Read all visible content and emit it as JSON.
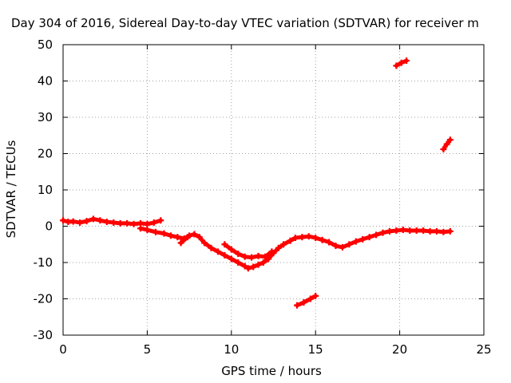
{
  "chart_data": {
    "type": "scatter",
    "title": "Day 304 of 2016, Sidereal Day-to-day VTEC variation (SDTVAR) for receiver m",
    "xlabel": "GPS time / hours",
    "ylabel": "SDTVAR / TECUs",
    "xlim": [
      0,
      25
    ],
    "ylim": [
      -30,
      50
    ],
    "xticks": [
      0,
      5,
      10,
      15,
      20,
      25
    ],
    "yticks": [
      -30,
      -20,
      -10,
      0,
      10,
      20,
      30,
      40,
      50
    ],
    "grid": true,
    "series": [
      {
        "color": "#ff0000",
        "marker": "plus",
        "points": [
          [
            0.0,
            1.6
          ],
          [
            0.3,
            1.2
          ],
          [
            0.6,
            1.3
          ],
          [
            1.0,
            1.0
          ],
          [
            1.4,
            1.4
          ],
          [
            1.8,
            2.0
          ],
          [
            2.2,
            1.6
          ],
          [
            2.6,
            1.2
          ],
          [
            3.0,
            1.0
          ],
          [
            3.4,
            0.8
          ],
          [
            3.8,
            0.8
          ],
          [
            4.2,
            0.6
          ],
          [
            4.6,
            0.8
          ],
          [
            5.0,
            0.6
          ],
          [
            5.4,
            1.0
          ],
          [
            5.8,
            1.6
          ],
          [
            4.6,
            -0.6
          ],
          [
            5.0,
            -1.0
          ],
          [
            5.5,
            -1.6
          ],
          [
            6.0,
            -2.0
          ],
          [
            6.4,
            -2.6
          ],
          [
            6.8,
            -3.0
          ],
          [
            7.2,
            -3.4
          ],
          [
            7.5,
            -2.6
          ],
          [
            7.8,
            -2.2
          ],
          [
            8.1,
            -3.0
          ],
          [
            8.4,
            -4.6
          ],
          [
            8.8,
            -6.0
          ],
          [
            9.2,
            -7.0
          ],
          [
            9.6,
            -8.0
          ],
          [
            10.0,
            -9.0
          ],
          [
            10.4,
            -10.0
          ],
          [
            10.8,
            -11.0
          ],
          [
            11.0,
            -11.6
          ],
          [
            11.3,
            -11.2
          ],
          [
            11.6,
            -10.6
          ],
          [
            11.9,
            -10.0
          ],
          [
            12.2,
            -9.0
          ],
          [
            12.5,
            -7.4
          ],
          [
            12.8,
            -6.0
          ],
          [
            13.1,
            -5.0
          ],
          [
            13.5,
            -4.0
          ],
          [
            13.8,
            -3.2
          ],
          [
            14.2,
            -3.0
          ],
          [
            14.6,
            -2.8
          ],
          [
            15.0,
            -3.2
          ],
          [
            15.4,
            -3.8
          ],
          [
            15.8,
            -4.4
          ],
          [
            16.2,
            -5.4
          ],
          [
            16.6,
            -5.8
          ],
          [
            17.0,
            -5.0
          ],
          [
            17.4,
            -4.2
          ],
          [
            17.8,
            -3.6
          ],
          [
            18.2,
            -3.0
          ],
          [
            18.6,
            -2.4
          ],
          [
            19.0,
            -1.8
          ],
          [
            19.4,
            -1.4
          ],
          [
            19.8,
            -1.2
          ],
          [
            20.2,
            -1.0
          ],
          [
            20.6,
            -1.2
          ],
          [
            21.0,
            -1.2
          ],
          [
            21.4,
            -1.2
          ],
          [
            21.8,
            -1.4
          ],
          [
            22.2,
            -1.4
          ],
          [
            22.6,
            -1.6
          ],
          [
            23.0,
            -1.4
          ],
          [
            9.6,
            -5.0
          ],
          [
            10.0,
            -6.4
          ],
          [
            10.4,
            -7.6
          ],
          [
            10.8,
            -8.4
          ],
          [
            11.2,
            -8.6
          ],
          [
            11.6,
            -8.2
          ],
          [
            12.0,
            -8.4
          ],
          [
            12.4,
            -7.0
          ],
          [
            7.0,
            -4.6
          ],
          [
            7.4,
            -3.0
          ],
          [
            13.9,
            -21.8
          ],
          [
            14.3,
            -21.0
          ],
          [
            14.7,
            -20.0
          ],
          [
            15.0,
            -19.2
          ],
          [
            19.8,
            44.2
          ],
          [
            20.1,
            45.0
          ],
          [
            20.4,
            45.6
          ],
          [
            22.6,
            21.2
          ],
          [
            22.8,
            22.6
          ],
          [
            23.0,
            23.8
          ]
        ]
      }
    ]
  }
}
